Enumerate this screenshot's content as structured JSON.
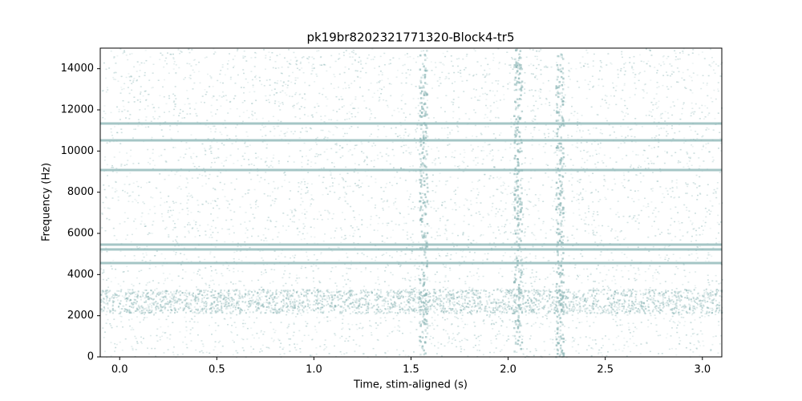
{
  "chart_data": {
    "type": "spectrogram",
    "title": "pk19br8202321771320-Block4-tr5",
    "xlabel": "Time, stim-aligned (s)",
    "ylabel": "Frequency (Hz)",
    "color": "#8fb8b8",
    "xlim": [
      -0.1,
      3.1
    ],
    "ylim": [
      0,
      15000
    ],
    "xticks": [
      {
        "value": 0,
        "label": "0.0"
      },
      0.5,
      {
        "value": 1,
        "label": "1.0"
      },
      1.5,
      {
        "value": 2,
        "label": "2.0"
      },
      2.5,
      {
        "value": 3,
        "label": "3.0"
      }
    ],
    "yticks": [
      0,
      2000,
      4000,
      6000,
      8000,
      10000,
      12000,
      14000
    ]
  }
}
